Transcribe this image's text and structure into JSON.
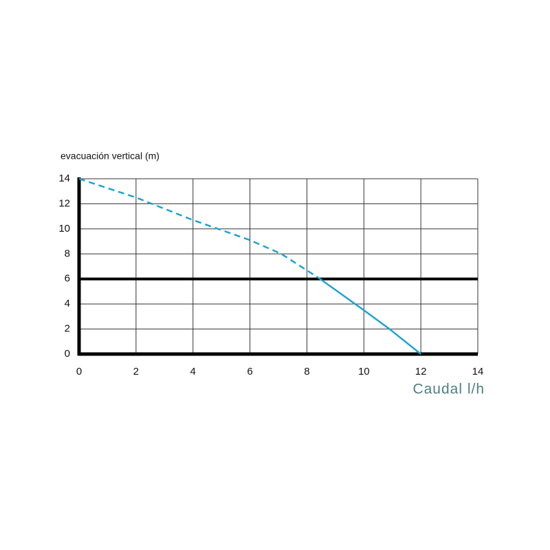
{
  "chart_data": {
    "type": "line",
    "y_label": "evacuación vertical (m)",
    "x_label": "Caudal l/h",
    "series": [
      {
        "color": "#1ba3d3",
        "style": "dashed",
        "x": [
          0,
          2,
          4,
          6,
          7.1,
          8.4
        ],
        "values": [
          14,
          12.5,
          10.7,
          9.1,
          8,
          6.1
        ]
      },
      {
        "color": "#1ba3d3",
        "style": "solid",
        "x": [
          8.4,
          10,
          10.9,
          12
        ],
        "values": [
          6.1,
          3.5,
          2,
          0
        ]
      }
    ],
    "reference_line": 6,
    "xlim": [
      0,
      14
    ],
    "xticks": [
      0,
      2,
      4,
      6,
      8,
      10,
      12,
      14
    ],
    "ylim": [
      0,
      14
    ],
    "yticks": [
      0,
      2,
      4,
      6,
      8,
      10,
      12,
      14
    ],
    "grid": true
  }
}
